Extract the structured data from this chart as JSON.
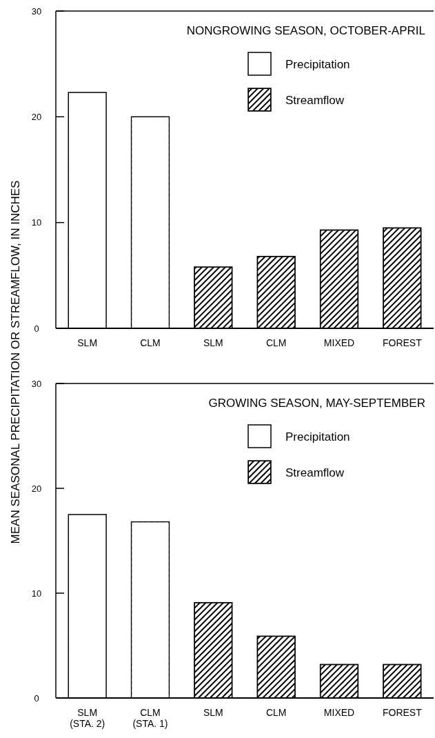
{
  "chart_data": [
    {
      "type": "bar",
      "title": "NONGROWING SEASON, OCTOBER-APRIL",
      "ylabel": "MEAN SEASONAL PRECIPITATION OR STREAMFLOW, IN INCHES",
      "categories": [
        "SLM",
        "CLM",
        "SLM",
        "CLM",
        "MIXED",
        "FOREST"
      ],
      "series": [
        {
          "name": "Precipitation",
          "color": "#ffffff",
          "values": [
            22.3,
            20.0,
            null,
            null,
            null,
            null
          ]
        },
        {
          "name": "Streamflow",
          "color": "#000000",
          "values": [
            null,
            null,
            5.8,
            6.8,
            9.3,
            9.5
          ]
        }
      ],
      "ylim": [
        0,
        30
      ],
      "yticks": [
        0,
        10,
        20,
        30
      ],
      "legend": "top right",
      "grid": false
    },
    {
      "type": "bar",
      "title": "GROWING SEASON, MAY-SEPTEMBER",
      "categories": [
        "SLM\n(STA. 2)",
        "CLM\n(STA. 1)",
        "SLM",
        "CLM",
        "MIXED",
        "FOREST"
      ],
      "series": [
        {
          "name": "Precipitation",
          "color": "#ffffff",
          "values": [
            17.5,
            16.8,
            null,
            null,
            null,
            null
          ]
        },
        {
          "name": "Streamflow",
          "color": "#000000",
          "values": [
            null,
            null,
            9.1,
            5.9,
            3.2,
            3.2
          ]
        }
      ],
      "ylim": [
        0,
        30
      ],
      "yticks": [
        0,
        10,
        20,
        30
      ],
      "legend": "top right",
      "grid": false
    }
  ]
}
